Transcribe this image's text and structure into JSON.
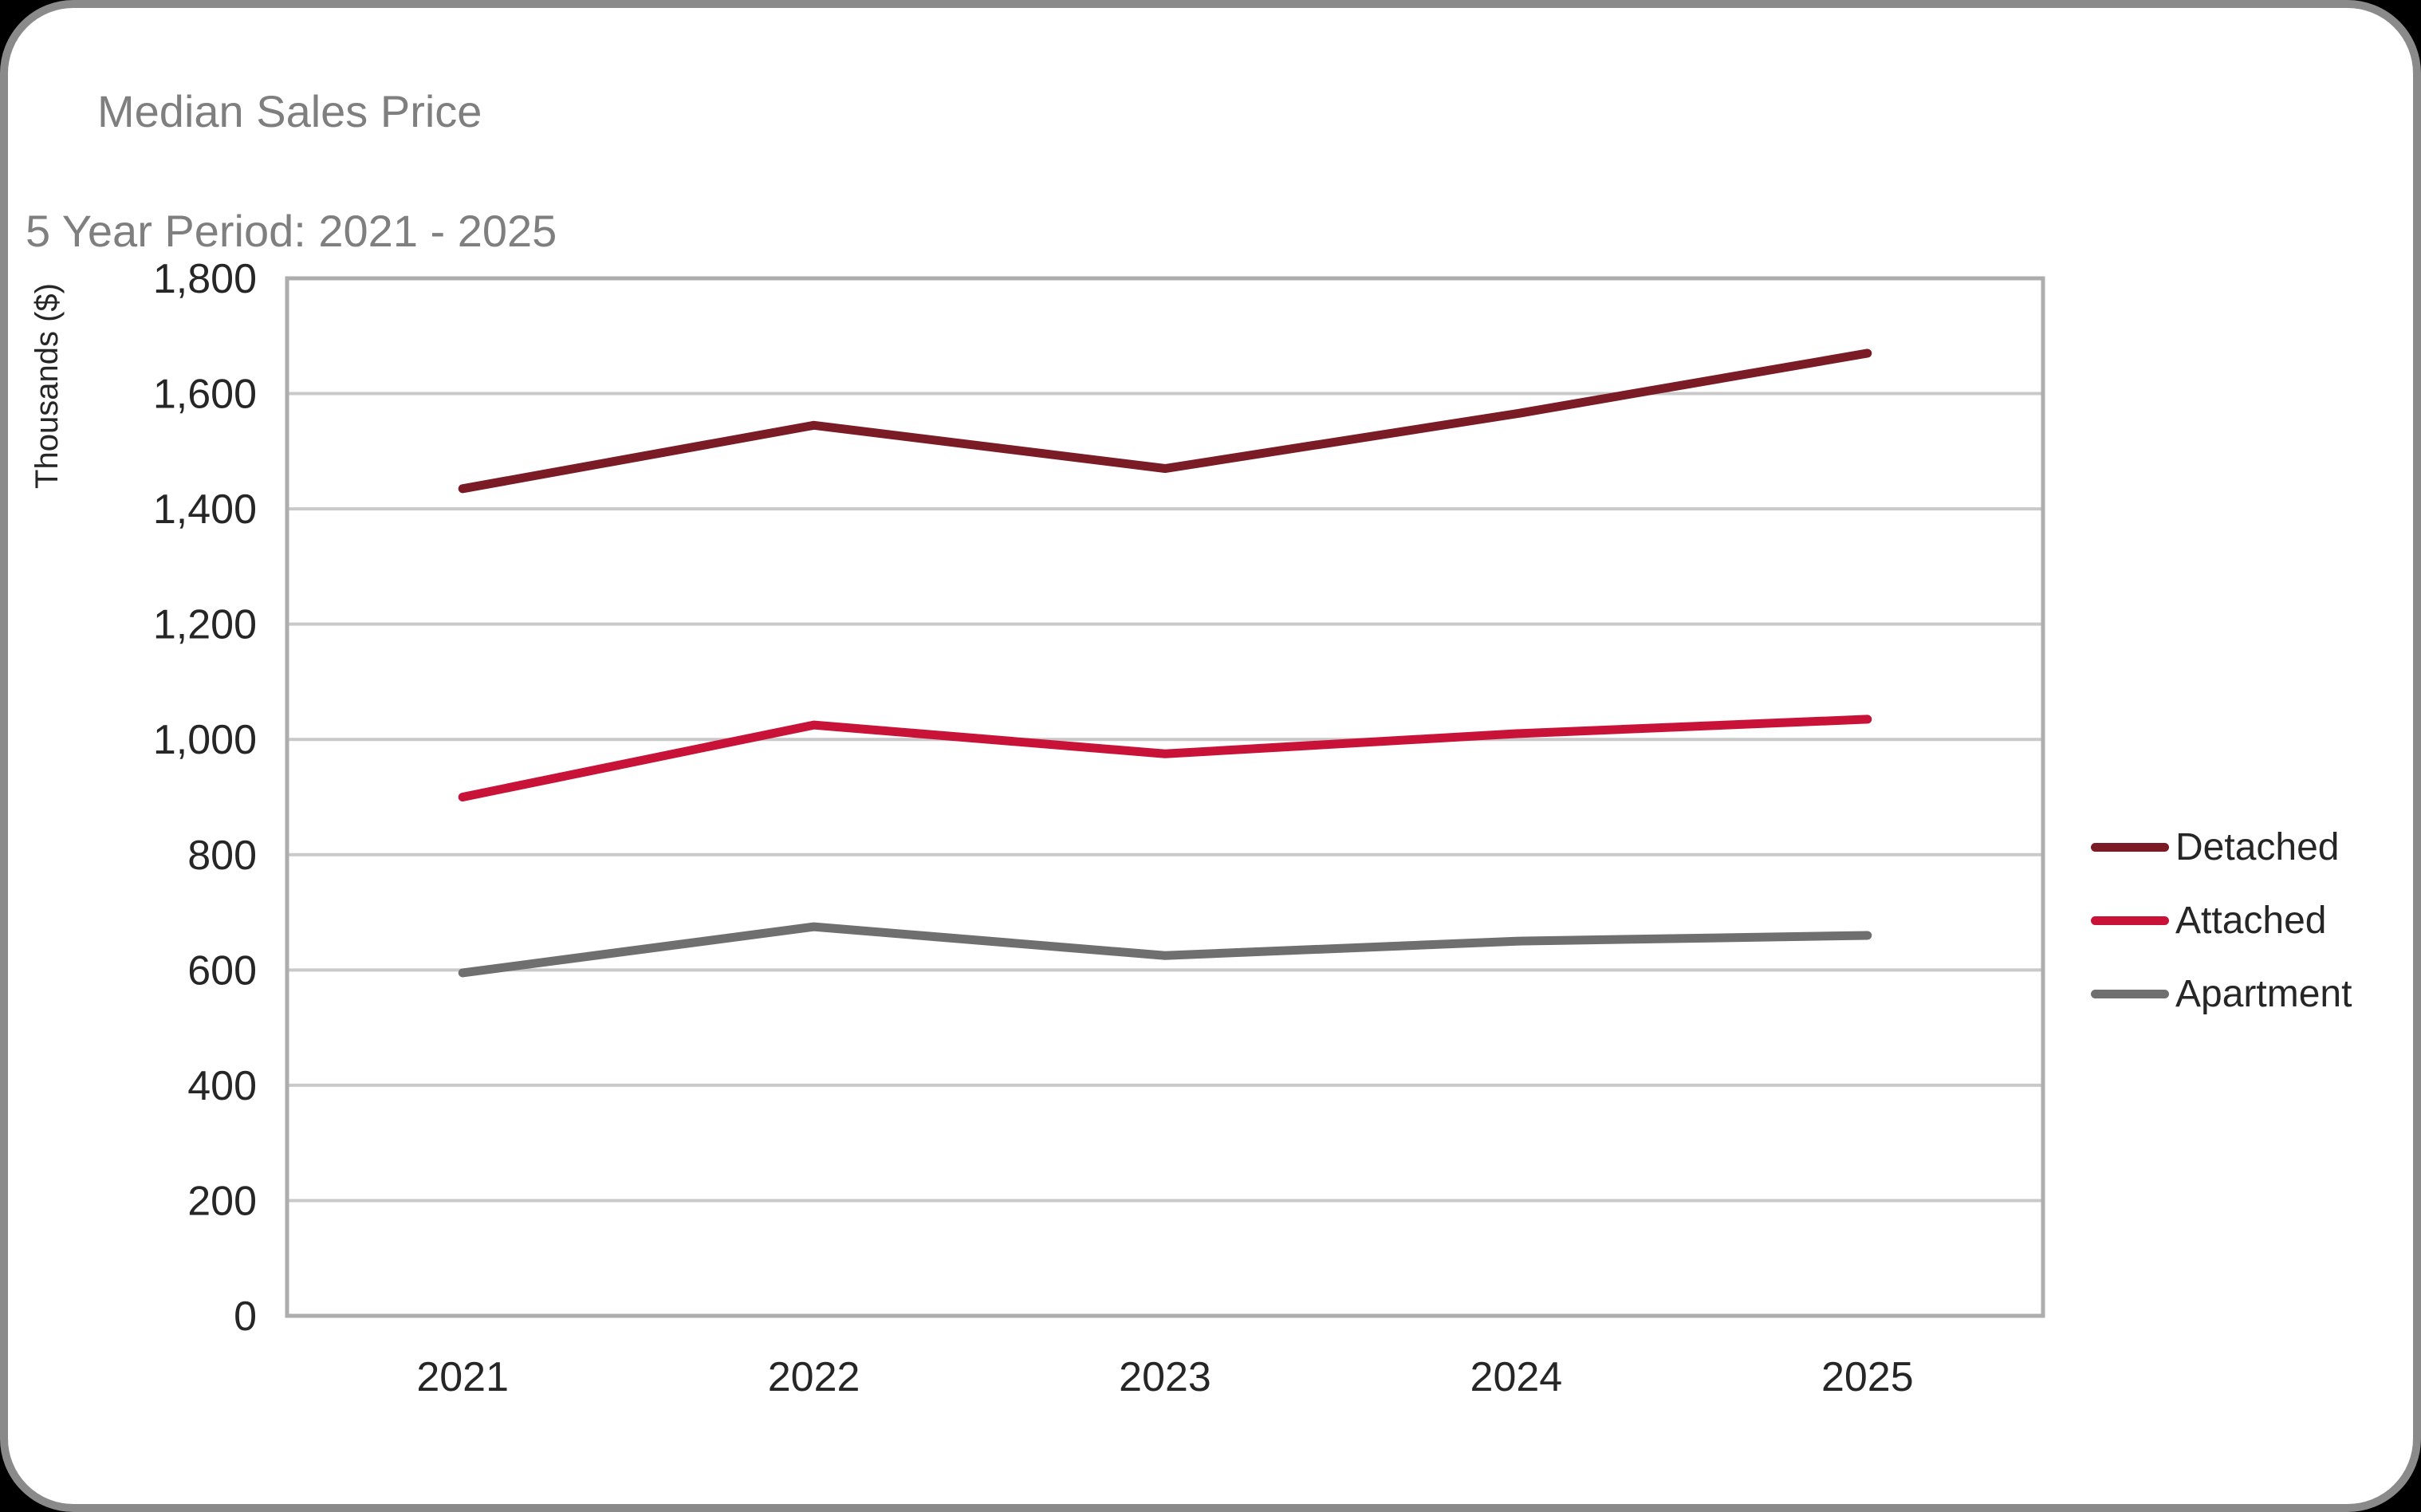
{
  "chart_data": {
    "type": "line",
    "title": "Median Sales Price",
    "subtitle": "5 Year Period: 2021 - 2025",
    "ylabel": "Thousands ($)",
    "categories": [
      "2021",
      "2022",
      "2023",
      "2024",
      "2025"
    ],
    "series": [
      {
        "name": "Detached",
        "color": "#7A1B25",
        "values": [
          1435,
          1545,
          1470,
          1565,
          1670
        ]
      },
      {
        "name": "Attached",
        "color": "#C81237",
        "values": [
          900,
          1025,
          975,
          1010,
          1035
        ]
      },
      {
        "name": "Apartment",
        "color": "#6F6F6F",
        "values": [
          595,
          675,
          625,
          650,
          660
        ]
      }
    ],
    "ylim": [
      0,
      1800
    ],
    "y_tick_step": 200,
    "y_tick_labels": [
      "0",
      "200",
      "400",
      "600",
      "800",
      "1,000",
      "1,200",
      "1,400",
      "1,600",
      "1,800"
    ],
    "grid": "horizontal",
    "legend_position": "right"
  },
  "colors": {
    "background": "#FFFFFF",
    "outside_corners": "#000000",
    "frame_border": "#8A8A8A",
    "plot_border": "#ADADAD",
    "gridline": "#C9C9C9",
    "title_text": "#7F7F7F",
    "tick_text": "#262626",
    "legend_text": "#262626"
  }
}
